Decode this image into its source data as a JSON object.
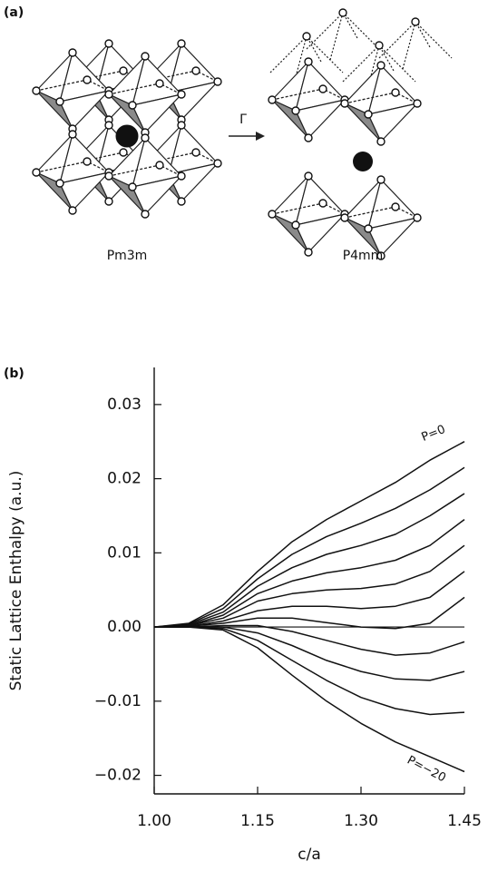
{
  "panel_a": {
    "label": "(a)",
    "left_label": "Pm3m",
    "arrow_label": "Γ",
    "right_label": "P4mm"
  },
  "chart_data": {
    "type": "line",
    "panel_label": "(b)",
    "y_label": "Static Lattice Enthalpy (a.u.)",
    "x_label": "c/a",
    "x": [
      1.0,
      1.05,
      1.1,
      1.15,
      1.2,
      1.25,
      1.3,
      1.35,
      1.4,
      1.45
    ],
    "xlim": [
      1.0,
      1.45
    ],
    "xticks": [
      {
        "value": 1.0,
        "label": "1.00"
      },
      1.15,
      {
        "value": 1.3,
        "label": "1.30"
      },
      1.45
    ],
    "ylim": [
      -0.0225,
      0.035
    ],
    "yticks": [
      0.03,
      0.02,
      0.01,
      {
        "value": 0,
        "label": "0.00"
      },
      {
        "value": -0.01,
        "label": "−0.01"
      },
      {
        "value": -0.02,
        "label": "−0.02"
      }
    ],
    "color": "#111111",
    "series": [
      {
        "values": [
          0,
          0.0005,
          0.003,
          0.0075,
          0.0115,
          0.0145,
          0.017,
          0.0195,
          0.0225,
          0.025
        ]
      },
      {
        "values": [
          0,
          0.0004,
          0.0025,
          0.0065,
          0.0098,
          0.0122,
          0.014,
          0.016,
          0.0185,
          0.0215
        ]
      },
      {
        "values": [
          0,
          0.0003,
          0.002,
          0.0055,
          0.008,
          0.0098,
          0.011,
          0.0125,
          0.015,
          0.018
        ]
      },
      {
        "values": [
          0,
          0.0002,
          0.0016,
          0.0045,
          0.0062,
          0.0073,
          0.008,
          0.009,
          0.011,
          0.0145
        ]
      },
      {
        "values": [
          0,
          0.0002,
          0.0012,
          0.0035,
          0.0045,
          0.005,
          0.0052,
          0.0058,
          0.0075,
          0.011
        ]
      },
      {
        "values": [
          0,
          0.0001,
          0.0008,
          0.0022,
          0.0028,
          0.0028,
          0.0025,
          0.0028,
          0.004,
          0.0075
        ]
      },
      {
        "values": [
          0,
          0.0001,
          0.0005,
          0.0012,
          0.0012,
          0.0006,
          0,
          -0.0002,
          0.0005,
          0.004
        ]
      },
      {
        "values": [
          0,
          0,
          0.0002,
          0.0002,
          -0.0006,
          -0.0018,
          -0.003,
          -0.0038,
          -0.0035,
          -0.002
        ]
      },
      {
        "values": [
          0,
          0,
          0,
          -0.0008,
          -0.0025,
          -0.0045,
          -0.006,
          -0.007,
          -0.0072,
          -0.006
        ]
      },
      {
        "values": [
          0,
          0,
          -0.0002,
          -0.0018,
          -0.0045,
          -0.0072,
          -0.0095,
          -0.011,
          -0.0118,
          -0.0115
        ]
      },
      {
        "values": [
          0,
          0,
          -0.0004,
          -0.0028,
          -0.0065,
          -0.01,
          -0.013,
          -0.0155,
          -0.0175,
          -0.0195
        ]
      }
    ],
    "annotations": [
      "P=0",
      "P=−20"
    ]
  }
}
